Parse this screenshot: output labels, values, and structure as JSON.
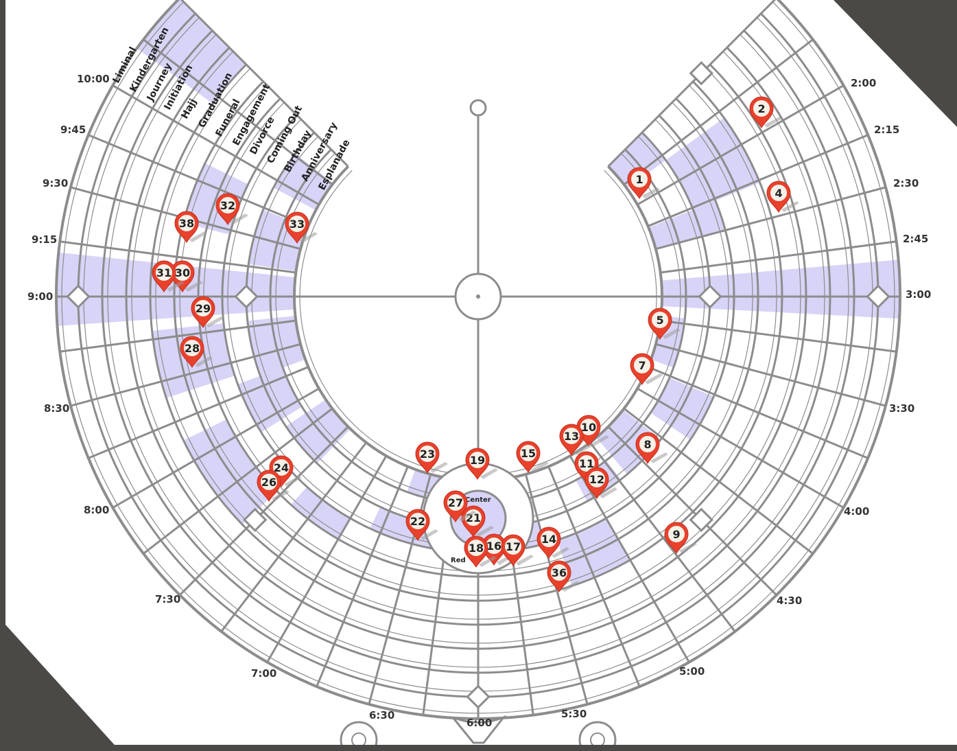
{
  "map": {
    "clock_labels": [
      {
        "text": "10:00",
        "key": "t1000"
      },
      {
        "text": "9:45",
        "key": "t945"
      },
      {
        "text": "9:30",
        "key": "t930"
      },
      {
        "text": "9:15",
        "key": "t915"
      },
      {
        "text": "9:00",
        "key": "t900"
      },
      {
        "text": "8:30",
        "key": "t830"
      },
      {
        "text": "8:00",
        "key": "t800"
      },
      {
        "text": "7:30",
        "key": "t730"
      },
      {
        "text": "7:00",
        "key": "t700"
      },
      {
        "text": "6:30",
        "key": "t630"
      },
      {
        "text": "6:00",
        "key": "t600"
      },
      {
        "text": "5:30",
        "key": "t530"
      },
      {
        "text": "5:00",
        "key": "t500"
      },
      {
        "text": "4:30",
        "key": "t430"
      },
      {
        "text": "4:00",
        "key": "t400"
      },
      {
        "text": "3:30",
        "key": "t330"
      },
      {
        "text": "3:00",
        "key": "t300"
      },
      {
        "text": "2:45",
        "key": "t245"
      },
      {
        "text": "2:30",
        "key": "t230"
      },
      {
        "text": "2:15",
        "key": "t215"
      },
      {
        "text": "2:00",
        "key": "t200"
      }
    ],
    "street_names": [
      "Liminal",
      "Kindergarten",
      "Journey",
      "Initiation",
      "Hajj",
      "Graduation",
      "Funeral",
      "Engagement",
      "Divorce",
      "Coming Out",
      "Birthday",
      "Anniversary",
      "Esplanade"
    ],
    "center_labels": {
      "center": "Center",
      "red": "Red"
    },
    "pins": [
      {
        "n": "1"
      },
      {
        "n": "2"
      },
      {
        "n": "4"
      },
      {
        "n": "5"
      },
      {
        "n": "7"
      },
      {
        "n": "8"
      },
      {
        "n": "9"
      },
      {
        "n": "10"
      },
      {
        "n": "11"
      },
      {
        "n": "12"
      },
      {
        "n": "13"
      },
      {
        "n": "14"
      },
      {
        "n": "15"
      },
      {
        "n": "16"
      },
      {
        "n": "17"
      },
      {
        "n": "18"
      },
      {
        "n": "19"
      },
      {
        "n": "21"
      },
      {
        "n": "22"
      },
      {
        "n": "23"
      },
      {
        "n": "24"
      },
      {
        "n": "26"
      },
      {
        "n": "27"
      },
      {
        "n": "28"
      },
      {
        "n": "29"
      },
      {
        "n": "30"
      },
      {
        "n": "31"
      },
      {
        "n": "32"
      },
      {
        "n": "33"
      },
      {
        "n": "36"
      },
      {
        "n": "38"
      }
    ],
    "colors": {
      "page": "#ffffff",
      "street": "#8c8c8c",
      "highlight": "#d7d4f7",
      "pin_fill": "#e8412c",
      "pin_inner": "#f5f1e8",
      "backdrop": "#4b4946"
    }
  }
}
